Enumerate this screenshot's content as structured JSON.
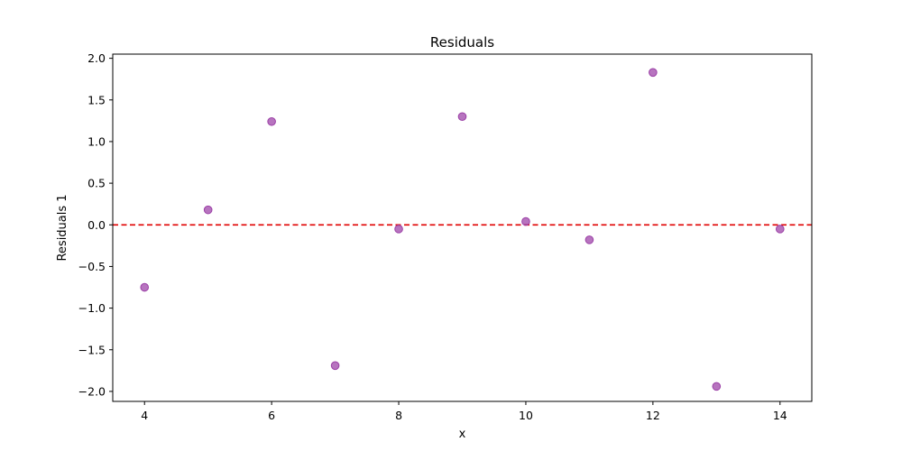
{
  "chart_data": {
    "type": "scatter",
    "title": "Residuals",
    "xlabel": "x",
    "ylabel": "Residuals 1",
    "xlim": [
      3.5,
      14.5
    ],
    "ylim": [
      -2.12,
      2.05
    ],
    "xticks": [
      4,
      6,
      8,
      10,
      12,
      14
    ],
    "yticks": [
      -2.0,
      -1.5,
      -1.0,
      -0.5,
      0.0,
      0.5,
      1.0,
      1.5,
      2.0
    ],
    "xtick_labels": [
      "4",
      "6",
      "8",
      "10",
      "12",
      "14"
    ],
    "ytick_labels": [
      "−2.0",
      "−1.5",
      "−1.0",
      "−0.5",
      "0.0",
      "0.5",
      "1.0",
      "1.5",
      "2.0"
    ],
    "grid": false,
    "series": [
      {
        "color": "#9b3fa6",
        "x": [
          4,
          5,
          6,
          7,
          8,
          9,
          10,
          11,
          12,
          13,
          14
        ],
        "y": [
          -0.75,
          0.18,
          1.24,
          -1.69,
          -0.05,
          1.3,
          0.04,
          -0.18,
          1.83,
          -1.94,
          -0.05
        ]
      }
    ],
    "reference_line": {
      "y": 0.0,
      "style": "dashed",
      "color": "#e00000"
    }
  }
}
